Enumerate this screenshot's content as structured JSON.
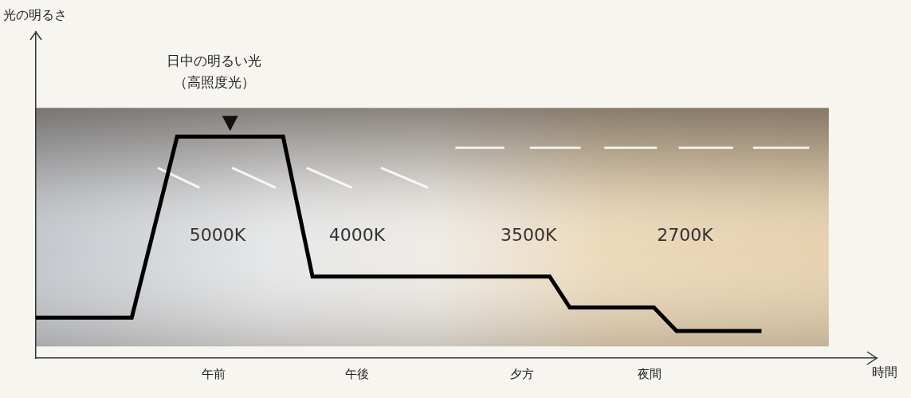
{
  "chart_data": {
    "type": "line",
    "y_label": "光の明るさ",
    "x_label": "時間",
    "x": [
      0,
      11.4,
      16.8,
      29.4,
      32.9,
      61.1,
      63.5,
      73.5,
      76.2,
      86.3
    ],
    "values": [
      12.4,
      12.4,
      67.9,
      67.9,
      25,
      25,
      15.5,
      15.5,
      8.3,
      8.3
    ],
    "color": "#000000",
    "xlim": [
      0,
      100
    ],
    "xticks": [
      {
        "value": 21.1,
        "label": "午前"
      },
      {
        "value": 38.2,
        "label": "午後"
      },
      {
        "value": 57.8,
        "label": "夕方"
      },
      {
        "value": 73.0,
        "label": "夜間"
      }
    ],
    "ylim": [
      0,
      100
    ],
    "yticks": [],
    "grid": false,
    "tick_labels": "x",
    "annotations": [
      "日中の明るい光\n（高照度光）",
      "5000K",
      "4000K",
      "3500K",
      "2700K"
    ]
  }
}
